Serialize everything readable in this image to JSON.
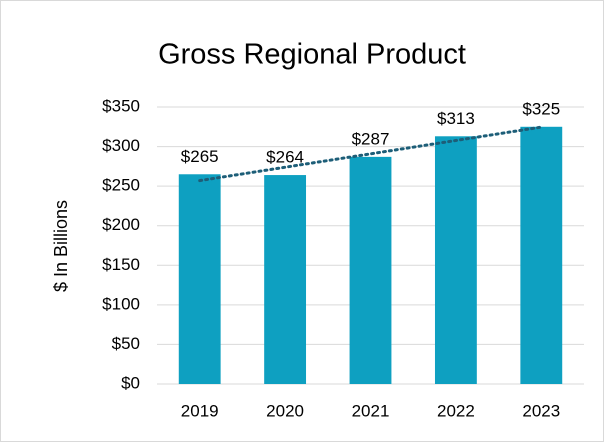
{
  "chart_data": {
    "type": "bar",
    "title": "Gross Regional Product",
    "y_label": "$ In Billions",
    "categories": [
      "2019",
      "2020",
      "2021",
      "2022",
      "2023"
    ],
    "values": [
      265,
      264,
      287,
      313,
      325
    ],
    "value_labels": [
      "$265",
      "$264",
      "$287",
      "$313",
      "$325"
    ],
    "color": "#0ea0c1",
    "trendline": "linear",
    "trendline_color": "#1d5e78",
    "ylim": [
      0,
      350
    ],
    "yticks": [
      {
        "value": 0,
        "label": "$0"
      },
      {
        "value": 50,
        "label": "$50"
      },
      {
        "value": 100,
        "label": "$100"
      },
      {
        "value": 150,
        "label": "$150"
      },
      {
        "value": 200,
        "label": "$200"
      },
      {
        "value": 250,
        "label": "$250"
      },
      {
        "value": 300,
        "label": "$300"
      },
      {
        "value": 350,
        "label": "$350"
      }
    ],
    "grid": true
  }
}
